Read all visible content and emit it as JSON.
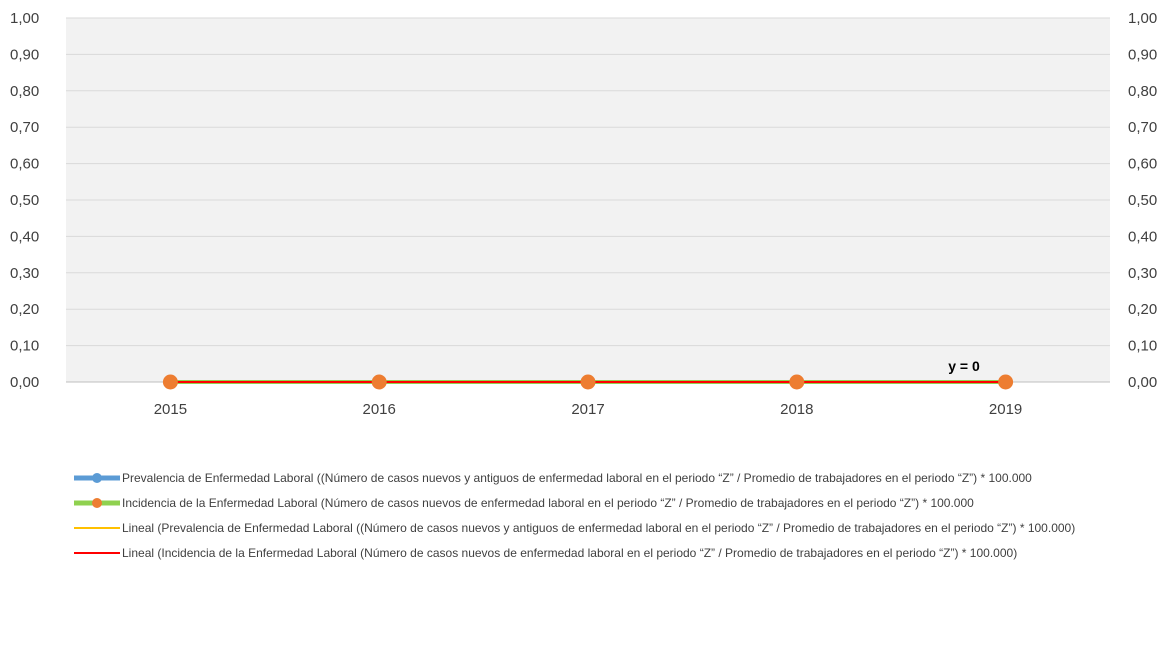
{
  "chart_data": {
    "type": "line",
    "categories": [
      "2015",
      "2016",
      "2017",
      "2018",
      "2019"
    ],
    "y_ticks": [
      "0,00",
      "0,10",
      "0,20",
      "0,30",
      "0,40",
      "0,50",
      "0,60",
      "0,70",
      "0,80",
      "0,90",
      "1,00"
    ],
    "ylim": [
      0,
      1
    ],
    "grid": true,
    "secondary_y_axis": true,
    "legend_position": "bottom",
    "annotation": "y = 0",
    "series": [
      {
        "name": "Prevalencia de Enfermedad Laboral ((Número de casos nuevos y antiguos de enfermedad laboral en el periodo  “Z” / Promedio de trabajadores en el periodo “Z”) * 100.000",
        "values": [
          0,
          0,
          0,
          0,
          0
        ],
        "color": "#5B9BD5",
        "marker_color": "#5B9BD5",
        "style": "line-marker"
      },
      {
        "name": "Incidencia de la Enfermedad Laboral (Número de casos nuevos de enfermedad laboral en el periodo  “Z” / Promedio de trabajadores en el periodo “Z”) * 100.000",
        "values": [
          0,
          0,
          0,
          0,
          0
        ],
        "color": "#8FD14F",
        "marker_color": "#ED7D31",
        "style": "line-marker"
      },
      {
        "name": "Lineal (Prevalencia de Enfermedad Laboral ((Número de casos nuevos y antiguos de enfermedad laboral en el periodo  “Z” / Promedio de trabajadores en el periodo “Z”) * 100.000)",
        "values": [
          0,
          0,
          0,
          0,
          0
        ],
        "color": "#FFC000",
        "style": "trendline"
      },
      {
        "name": "Lineal (Incidencia de la Enfermedad Laboral (Número de casos nuevos de enfermedad laboral en el periodo  “Z” / Promedio de trabajadores en el periodo “Z”) * 100.000)",
        "values": [
          0,
          0,
          0,
          0,
          0
        ],
        "color": "#FF0000",
        "style": "trendline"
      }
    ],
    "colors": {
      "plot_background": "#F2F2F2",
      "gridline": "#D9D9D9"
    }
  }
}
